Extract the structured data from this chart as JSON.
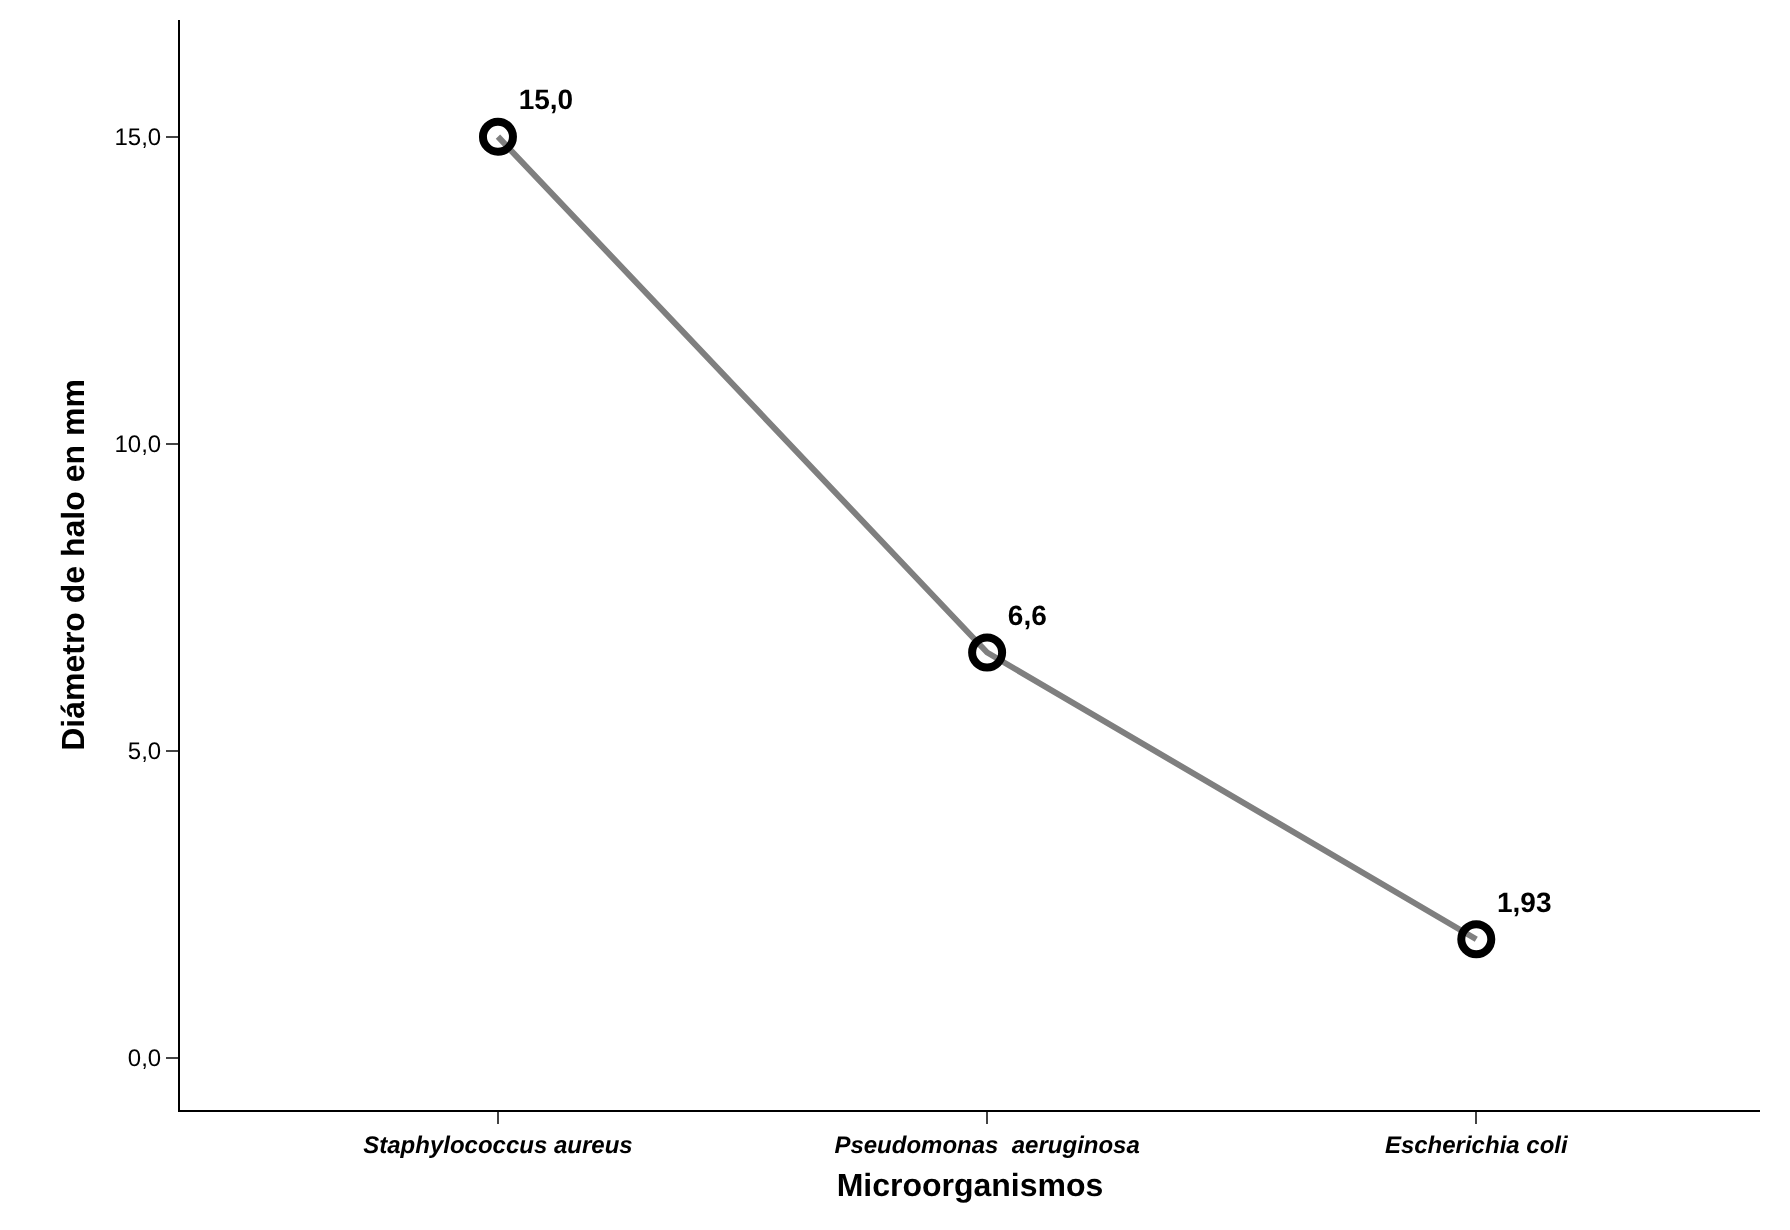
{
  "chart_data": {
    "type": "line",
    "xlabel": "Microorganismos",
    "ylabel": "Diámetro de halo en mm",
    "categories": [
      "Staphylococcus aureus",
      "Pseudomonas  aeruginosa",
      "Escherichia coli"
    ],
    "series": [
      {
        "color": "#7f7f7f",
        "values": [
          15.0,
          6.6,
          1.93
        ],
        "value_labels": [
          "15,0",
          "6,6",
          "1,93"
        ]
      }
    ],
    "ylim": [
      -0.85,
      16.9
    ],
    "yticks": [
      {
        "value": 0,
        "label": "0,0"
      },
      {
        "value": 5,
        "label": "5,0"
      },
      {
        "value": 10,
        "label": "10,0"
      },
      {
        "value": 15,
        "label": "15,0"
      }
    ],
    "marker": "circle",
    "legend": false
  }
}
